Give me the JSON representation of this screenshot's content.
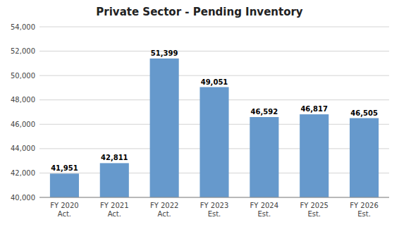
{
  "chart_data": {
    "type": "bar",
    "title": "Private Sector - Pending Inventory",
    "categories": [
      "FY 2020\nAct.",
      "FY 2021\nAct.",
      "FY 2022\nAct.",
      "FY 2023\nEst.",
      "FY 2024\nEst.",
      "FY 2025\nEst.",
      "FY 2026\nEst."
    ],
    "values": [
      41951,
      42811,
      51399,
      49051,
      46592,
      46817,
      46505
    ],
    "value_labels": [
      "41,951",
      "42,811",
      "51,399",
      "49,051",
      "46,592",
      "46,817",
      "46,505"
    ],
    "data_labels": true,
    "color": "#6699CC",
    "ylim": [
      40000,
      54000
    ],
    "yticks": [
      {
        "value": 40000,
        "label": "40,000"
      },
      {
        "value": 42000,
        "label": "42,000"
      },
      {
        "value": 44000,
        "label": "44,000"
      },
      {
        "value": 46000,
        "label": "46,000"
      },
      {
        "value": 48000,
        "label": "48,000"
      },
      {
        "value": 50000,
        "label": "50,000"
      },
      {
        "value": 52000,
        "label": "52,000"
      },
      {
        "value": 54000,
        "label": "54,000"
      }
    ],
    "grid": true
  }
}
